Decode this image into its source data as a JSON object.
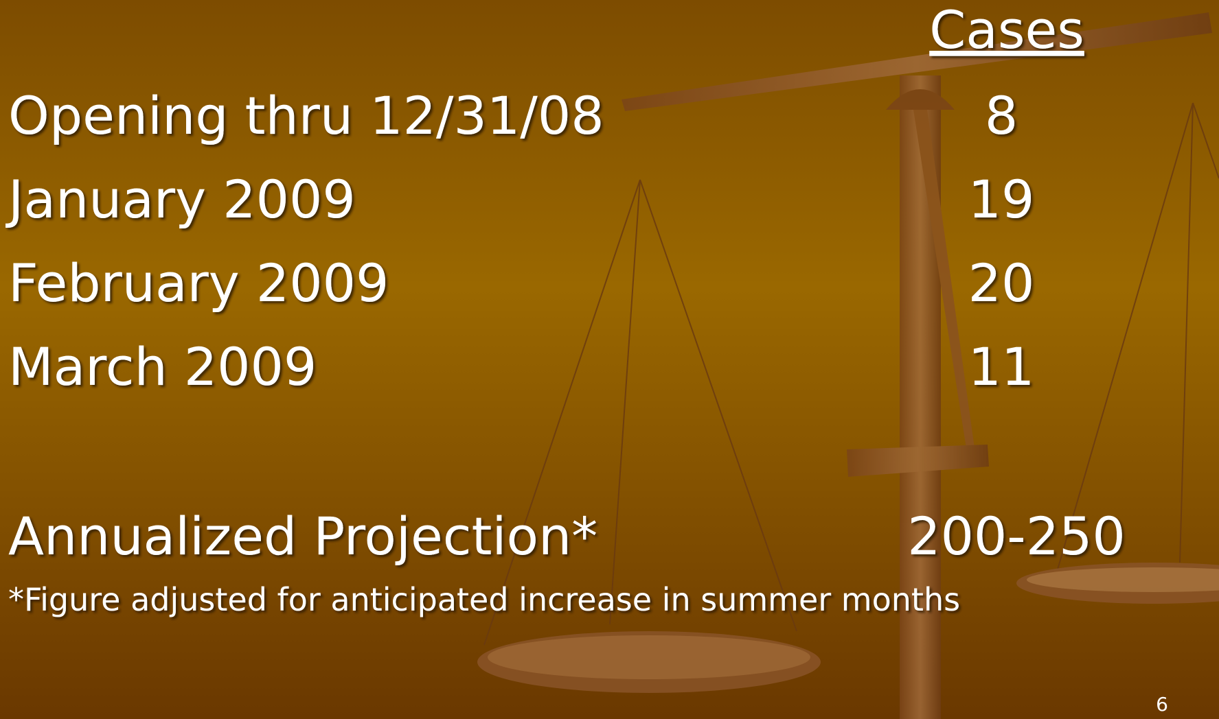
{
  "header": {
    "cases_label": "Cases"
  },
  "table": {
    "rows": [
      {
        "label": "Opening thru 12/31/08",
        "cases": "8"
      },
      {
        "label": "January 2009",
        "cases": "19"
      },
      {
        "label": "February 2009",
        "cases": "20"
      },
      {
        "label": "March 2009",
        "cases": "11"
      }
    ]
  },
  "projection": {
    "label": "Annualized Projection*",
    "value": "200-250"
  },
  "footnote": "*Figure adjusted for anticipated increase in summer months",
  "page_number": "6"
}
